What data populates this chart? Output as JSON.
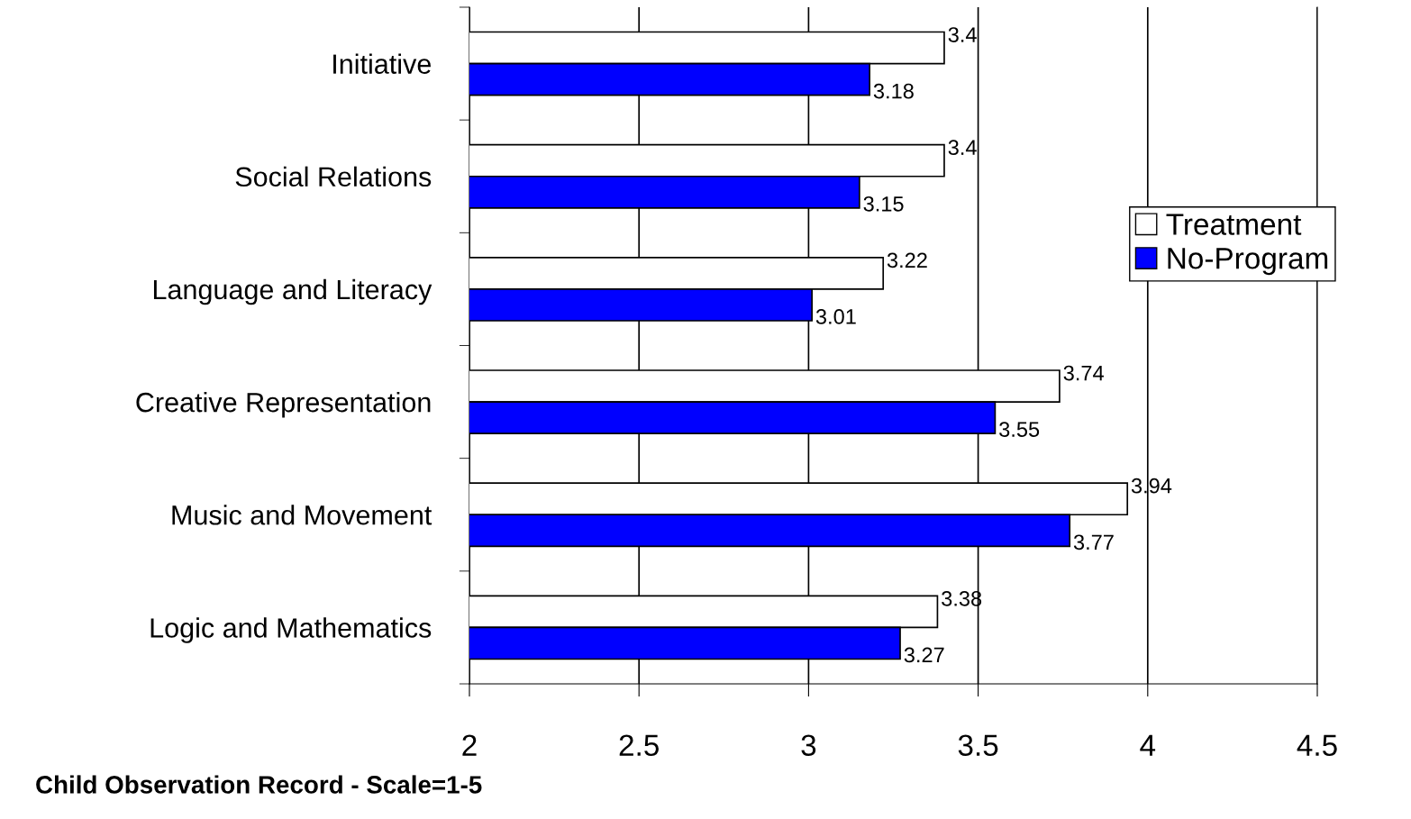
{
  "chart_data": {
    "type": "bar",
    "orientation": "horizontal",
    "xlabel": "Child Observation Record - Scale=1-5",
    "categories": [
      "Initiative",
      "Social Relations",
      "Language and Literacy",
      "Creative Representation",
      "Music and Movement",
      "Logic and Mathematics"
    ],
    "series": [
      {
        "name": "Treatment",
        "color": "#ffffff",
        "values": [
          3.4,
          3.4,
          3.22,
          3.74,
          3.94,
          3.38
        ]
      },
      {
        "name": "No-Program",
        "color": "#0000ff",
        "values": [
          3.18,
          3.15,
          3.01,
          3.55,
          3.77,
          3.27
        ]
      }
    ],
    "xlim": [
      2,
      4.5
    ],
    "xticks": [
      2,
      2.5,
      3,
      3.5,
      4,
      4.5
    ],
    "grid": "x",
    "legend": "right",
    "data_labels": true
  }
}
